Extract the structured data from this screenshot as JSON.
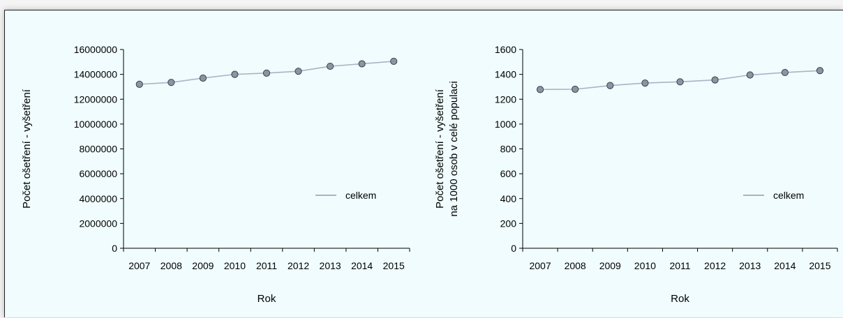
{
  "chart_data": [
    {
      "type": "line",
      "xlabel": "Rok",
      "ylabel": "Počet ošetření - vyšetření",
      "ylim": [
        0,
        16000000
      ],
      "yticks": [
        "0",
        "2000000",
        "4000000",
        "6000000",
        "8000000",
        "10000000",
        "12000000",
        "14000000",
        "16000000"
      ],
      "categories": [
        "2007",
        "2008",
        "2009",
        "2010",
        "2011",
        "2012",
        "2013",
        "2014",
        "2015"
      ],
      "legend_position": "right",
      "grid": false,
      "series": [
        {
          "name": "celkem",
          "color": "#a9b3c6",
          "values": [
            13200000,
            13350000,
            13700000,
            14000000,
            14100000,
            14250000,
            14650000,
            14850000,
            15050000
          ]
        }
      ]
    },
    {
      "type": "line",
      "xlabel": "Rok",
      "ylabel": [
        "Počet ošetření - vyšetření",
        "na 1000 osob v celé populaci"
      ],
      "ylim": [
        0,
        1600
      ],
      "yticks": [
        "0",
        "200",
        "400",
        "600",
        "800",
        "1000",
        "1200",
        "1400",
        "1600"
      ],
      "categories": [
        "2007",
        "2008",
        "2009",
        "2010",
        "2011",
        "2012",
        "2013",
        "2014",
        "2015"
      ],
      "legend_position": "right",
      "grid": false,
      "series": [
        {
          "name": "celkem",
          "color": "#a9b3c6",
          "values": [
            1278,
            1280,
            1310,
            1330,
            1340,
            1355,
            1395,
            1415,
            1430
          ]
        }
      ]
    }
  ]
}
